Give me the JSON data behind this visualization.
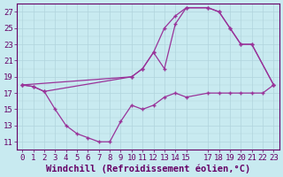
{
  "xlabel": "Windchill (Refroidissement éolien,°C)",
  "xlim": [
    -0.5,
    23.5
  ],
  "ylim": [
    10,
    28
  ],
  "xtick_values": [
    0,
    1,
    2,
    3,
    4,
    5,
    6,
    7,
    8,
    9,
    10,
    11,
    12,
    13,
    14,
    15,
    17,
    18,
    19,
    20,
    21,
    22,
    23
  ],
  "ytick_values": [
    11,
    13,
    15,
    17,
    19,
    21,
    23,
    25,
    27
  ],
  "background_color": "#c8eaf0",
  "grid_color": "#b0d4dc",
  "line_color": "#993399",
  "line1_x": [
    0,
    1,
    2,
    10,
    11,
    12,
    13,
    14,
    15,
    17,
    18,
    19,
    20,
    21,
    23
  ],
  "line1_y": [
    18,
    17.8,
    17.2,
    19,
    20,
    22,
    25,
    26.5,
    27.5,
    27.5,
    27,
    25,
    23,
    23,
    18
  ],
  "line2_x": [
    0,
    1,
    2,
    3,
    4,
    5,
    6,
    7,
    8,
    9,
    10,
    11,
    12,
    13,
    14,
    15,
    17,
    18,
    19,
    20,
    21,
    22,
    23
  ],
  "line2_y": [
    18,
    17.8,
    17.2,
    15,
    13,
    12,
    11.5,
    11,
    11,
    13.5,
    15.5,
    15,
    15.5,
    16.5,
    17,
    16.5,
    17,
    17,
    17,
    17,
    17,
    17,
    18
  ],
  "line3_x": [
    0,
    10,
    11,
    12,
    13,
    14,
    15,
    17,
    18,
    19,
    20,
    21,
    23
  ],
  "line3_y": [
    18,
    19,
    20,
    22,
    20,
    25.5,
    27.5,
    27.5,
    27,
    25,
    23,
    23,
    18
  ],
  "font_color": "#660066",
  "tick_fontsize": 6.5,
  "label_fontsize": 7.5
}
